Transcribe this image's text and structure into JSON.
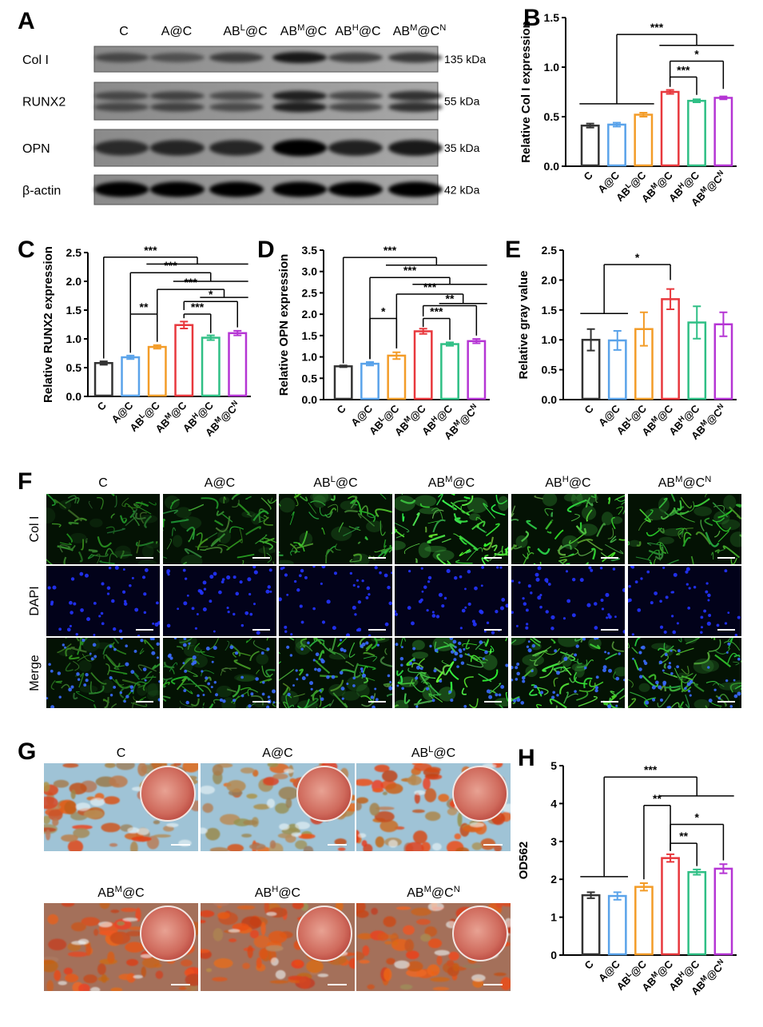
{
  "blot": {
    "panel": "A",
    "lanes": [
      [
        "C"
      ],
      [
        "A@C"
      ],
      [
        "AB",
        "L",
        "@C"
      ],
      [
        "AB",
        "M",
        "@C"
      ],
      [
        "AB",
        "H",
        "@C"
      ],
      [
        "AB",
        "M",
        "@C",
        "N"
      ]
    ],
    "rows": [
      {
        "name": "Col I",
        "size": "135 kDa"
      },
      {
        "name": "RUNX2",
        "size": "55 kDa"
      },
      {
        "name": "OPN",
        "size": "35 kDa"
      },
      {
        "name": "β-actin",
        "size": "42 kDa"
      }
    ]
  },
  "fluorescence": {
    "panel": "F",
    "columns": [
      [
        "C"
      ],
      [
        "A@C"
      ],
      [
        "AB",
        "L",
        "@C"
      ],
      [
        "AB",
        "M",
        "@C"
      ],
      [
        "AB",
        "H",
        "@C"
      ],
      [
        "AB",
        "M",
        "@C",
        "N"
      ]
    ],
    "rows": [
      "Col I",
      "DAPI",
      "Merge"
    ]
  },
  "staining": {
    "panel": "G",
    "columns": [
      [
        "C"
      ],
      [
        "A@C"
      ],
      [
        "AB",
        "L",
        "@C"
      ],
      [
        "AB",
        "M",
        "@C"
      ],
      [
        "AB",
        "H",
        "@C"
      ],
      [
        "AB",
        "M",
        "@C",
        "N"
      ]
    ]
  },
  "chart_data": [
    {
      "type": "bar",
      "panel": "B",
      "y_label": "Relative Col I expression",
      "categories": [
        [
          "C"
        ],
        [
          "A@C"
        ],
        [
          "AB",
          "L",
          "@C"
        ],
        [
          "AB",
          "M",
          "@C"
        ],
        [
          "AB",
          "H",
          "@C"
        ],
        [
          "AB",
          "M",
          "@C",
          "N"
        ]
      ],
      "values": [
        0.41,
        0.42,
        0.52,
        0.75,
        0.66,
        0.69
      ],
      "errors": [
        0.02,
        0.02,
        0.02,
        0.02,
        0.015,
        0.015
      ],
      "colors": [
        "#333333",
        "#5aa3ea",
        "#f39c28",
        "#e8383d",
        "#2fbf85",
        "#b535d4"
      ],
      "ylim": [
        0,
        1.5
      ],
      "yticks": [
        {
          "value": 0,
          "label": "0.0"
        },
        0.5,
        {
          "value": 1,
          "label": "1.0"
        },
        1.5
      ],
      "annotations": [
        "***",
        "*",
        "***"
      ]
    },
    {
      "type": "bar",
      "panel": "C",
      "y_label": "Relative RUNX2 expression",
      "categories": [
        [
          "C"
        ],
        [
          "A@C"
        ],
        [
          "AB",
          "L",
          "@C"
        ],
        [
          "AB",
          "M",
          "@C"
        ],
        [
          "AB",
          "H",
          "@C"
        ],
        [
          "AB",
          "M",
          "@C",
          "N"
        ]
      ],
      "values": [
        0.58,
        0.68,
        0.86,
        1.24,
        1.02,
        1.1
      ],
      "errors": [
        0.03,
        0.03,
        0.03,
        0.06,
        0.04,
        0.04
      ],
      "colors": [
        "#333333",
        "#5aa3ea",
        "#f39c28",
        "#e8383d",
        "#2fbf85",
        "#b535d4"
      ],
      "ylim": [
        0,
        2.5
      ],
      "yticks": [
        {
          "value": 0,
          "label": "0.0"
        },
        0.5,
        {
          "value": 1,
          "label": "1.0"
        },
        1.5,
        {
          "value": 2,
          "label": "2.0"
        },
        2.5
      ],
      "annotations": [
        "***",
        "***",
        "***",
        "**",
        "***",
        "*"
      ]
    },
    {
      "type": "bar",
      "panel": "D",
      "y_label": "Relative OPN expression",
      "categories": [
        [
          "C"
        ],
        [
          "A@C"
        ],
        [
          "AB",
          "L",
          "@C"
        ],
        [
          "AB",
          "M",
          "@C"
        ],
        [
          "AB",
          "H",
          "@C"
        ],
        [
          "AB",
          "M",
          "@C",
          "N"
        ]
      ],
      "values": [
        0.78,
        0.84,
        1.03,
        1.6,
        1.3,
        1.37
      ],
      "errors": [
        0.02,
        0.04,
        0.08,
        0.06,
        0.04,
        0.05
      ],
      "colors": [
        "#333333",
        "#5aa3ea",
        "#f39c28",
        "#e8383d",
        "#2fbf85",
        "#b535d4"
      ],
      "ylim": [
        0,
        3.5
      ],
      "yticks": [
        {
          "value": 0,
          "label": "0.0"
        },
        0.5,
        {
          "value": 1,
          "label": "1.0"
        },
        1.5,
        {
          "value": 2,
          "label": "2.0"
        },
        2.5,
        {
          "value": 3,
          "label": "3.0"
        },
        3.5
      ],
      "annotations": [
        "***",
        "***",
        "***",
        "*",
        "***",
        "**"
      ]
    },
    {
      "type": "bar",
      "panel": "E",
      "y_label": "Relative gray value",
      "categories": [
        [
          "C"
        ],
        [
          "A@C"
        ],
        [
          "AB",
          "L",
          "@C"
        ],
        [
          "AB",
          "M",
          "@C"
        ],
        [
          "AB",
          "H",
          "@C"
        ],
        [
          "AB",
          "M",
          "@C",
          "N"
        ]
      ],
      "values": [
        1.0,
        0.99,
        1.18,
        1.68,
        1.29,
        1.26
      ],
      "errors": [
        0.18,
        0.16,
        0.28,
        0.17,
        0.27,
        0.2
      ],
      "colors": [
        "#333333",
        "#5aa3ea",
        "#f39c28",
        "#e8383d",
        "#2fbf85",
        "#b535d4"
      ],
      "ylim": [
        0,
        2.5
      ],
      "yticks": [
        {
          "value": 0,
          "label": "0.0"
        },
        0.5,
        {
          "value": 1,
          "label": "1.0"
        },
        1.5,
        {
          "value": 2,
          "label": "2.0"
        },
        2.5
      ],
      "annotations": [
        "*"
      ]
    },
    {
      "type": "bar",
      "panel": "H",
      "y_label": "OD562",
      "categories": [
        [
          "C"
        ],
        [
          "A@C"
        ],
        [
          "AB",
          "L",
          "@C"
        ],
        [
          "AB",
          "M",
          "@C"
        ],
        [
          "AB",
          "H",
          "@C"
        ],
        [
          "AB",
          "M",
          "@C",
          "N"
        ]
      ],
      "values": [
        1.58,
        1.56,
        1.8,
        2.56,
        2.19,
        2.28
      ],
      "errors": [
        0.08,
        0.1,
        0.1,
        0.1,
        0.07,
        0.12
      ],
      "colors": [
        "#333333",
        "#5aa3ea",
        "#f39c28",
        "#e8383d",
        "#2fbf85",
        "#b535d4"
      ],
      "ylim": [
        0,
        5
      ],
      "yticks": [
        0,
        1,
        2,
        3,
        4,
        5
      ],
      "annotations": [
        "***",
        "**",
        "*",
        "**"
      ]
    }
  ]
}
